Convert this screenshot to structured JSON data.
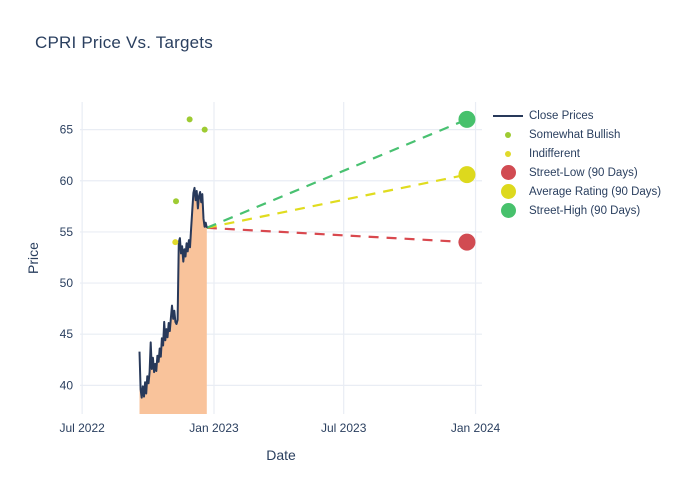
{
  "title": "CPRI Price Vs. Targets",
  "colors": {
    "background": "#ffffff",
    "text": "#2a3f5f",
    "grid": "#e9edf4",
    "close_line": "#28395a",
    "close_fill": "#f9c39b",
    "somewhat_bullish": "#9ecb32",
    "indifferent": "#e0da2b",
    "street_low": "#d14b52",
    "average_rating": "#ddd91d",
    "street_high": "#47c16c"
  },
  "chart_data": {
    "type": "line",
    "title": "CPRI Price Vs. Targets",
    "xlabel": "Date",
    "ylabel": "Price",
    "grid": true,
    "legend_position": "right",
    "x_domain": [
      "2022-06-28",
      "2024-01-10"
    ],
    "y_domain": [
      37.2,
      67.7
    ],
    "x_ticks": [
      {
        "label": "Jul 2022",
        "date": "2022-07-01"
      },
      {
        "label": "Jan 2023",
        "date": "2023-01-01"
      },
      {
        "label": "Jul 2023",
        "date": "2023-07-01"
      },
      {
        "label": "Jan 2024",
        "date": "2024-01-01"
      }
    ],
    "y_ticks": [
      40,
      45,
      50,
      55,
      60,
      65
    ],
    "series": [
      {
        "name": "Close Prices",
        "slug": "close-prices",
        "kind": "line-area",
        "legend_marker": "line",
        "color": "#28395a",
        "fill": "#f9c39b",
        "start": "2022-09-19",
        "end": "2022-12-22",
        "values": [
          43.3,
          39.6,
          38.8,
          39.9,
          38.9,
          40.3,
          39.2,
          40.9,
          40.2,
          41.3,
          44.2,
          41.6,
          42.7,
          41.3,
          42.1,
          41.4,
          42.9,
          42.3,
          43.6,
          42.8,
          44.6,
          43.9,
          46.2,
          44.4,
          45.5,
          44.7,
          46.1,
          45.3,
          46.6,
          47.8,
          46.5,
          47.3,
          46.2,
          46.0,
          46.4,
          54.0,
          54.4,
          52.9,
          53.6,
          52.1,
          53.3,
          52.6,
          53.9,
          53.1,
          54.2,
          53.5,
          55.3,
          57.0,
          58.8,
          59.3,
          58.1,
          59.0,
          57.3,
          58.5,
          58.9,
          57.9,
          58.7,
          56.3,
          55.5,
          55.9,
          55.4
        ]
      },
      {
        "name": "Somewhat Bullish",
        "slug": "somewhat-bullish",
        "kind": "scatter",
        "legend_marker": "small-dot",
        "color": "#9ecb32",
        "size": 3,
        "points": [
          {
            "date": "2022-11-09",
            "value": 58.0
          },
          {
            "date": "2022-11-28",
            "value": 66.0
          },
          {
            "date": "2022-12-19",
            "value": 65.0
          }
        ]
      },
      {
        "name": "Indifferent",
        "slug": "indifferent",
        "kind": "scatter",
        "legend_marker": "small-dot",
        "color": "#e0da2b",
        "size": 3,
        "points": [
          {
            "date": "2022-11-08",
            "value": 54.0
          }
        ]
      },
      {
        "name": "Street-Low (90 Days)",
        "slug": "street-low",
        "kind": "target",
        "legend_marker": "big-dot",
        "color": "#d14b52",
        "size": 8.5,
        "dash_color": "#d9494f",
        "point": {
          "date": "2023-12-20",
          "value": 54.0
        }
      },
      {
        "name": "Average Rating (90 Days)",
        "slug": "average-rating",
        "kind": "target",
        "legend_marker": "big-dot",
        "color": "#ddd91d",
        "size": 8.5,
        "dash_color": "#e0dc1f",
        "point": {
          "date": "2023-12-20",
          "value": 60.6
        }
      },
      {
        "name": "Street-High (90 Days)",
        "slug": "street-high",
        "kind": "target",
        "legend_marker": "big-dot",
        "color": "#47c16c",
        "size": 8.5,
        "dash_color": "#49c171",
        "point": {
          "date": "2023-12-20",
          "value": 66.0
        }
      }
    ]
  }
}
